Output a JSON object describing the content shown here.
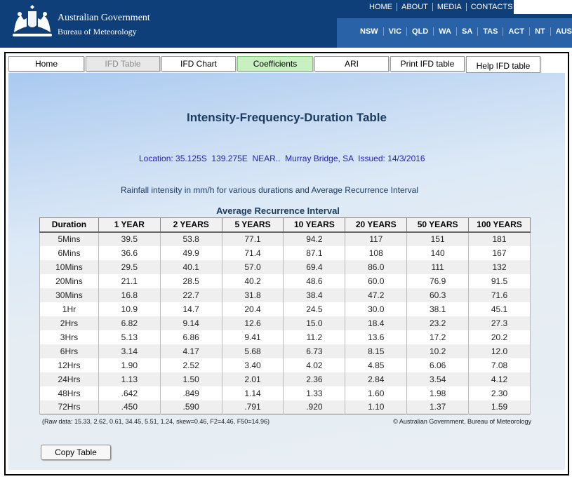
{
  "header": {
    "gov_name": "Australian Government",
    "bom_name": "Bureau of Meteorology",
    "topnav": [
      "HOME",
      "ABOUT",
      "MEDIA",
      "CONTACTS"
    ],
    "statenav": [
      "NSW",
      "VIC",
      "QLD",
      "WA",
      "SA",
      "TAS",
      "ACT",
      "NT",
      "AUSTRALIA"
    ]
  },
  "tabs": [
    {
      "label": "Home",
      "state": "normal"
    },
    {
      "label": "IFD Table",
      "state": "disabled"
    },
    {
      "label": "IFD Chart",
      "state": "normal"
    },
    {
      "label": "Coefficients",
      "state": "active"
    },
    {
      "label": "ARI",
      "state": "normal"
    },
    {
      "label": "Print IFD table",
      "state": "normal"
    },
    {
      "label": "Help IFD table",
      "state": "normal"
    }
  ],
  "main": {
    "title": "Intensity-Frequency-Duration Table",
    "location": "Location: 35.125S  139.275E  NEAR..  Murray Bridge, SA  Issued: 14/3/2016",
    "subtitle": "Rainfall intensity in mm/h for various durations and Average Recurrence Interval",
    "ari_heading": "Average Recurrence Interval",
    "raw_data": "(Raw data: 15.33, 2.62, 0.61, 34.45, 5.51, 1.24, skew=0.46, F2=4.46, F50=14.96)",
    "copyright": "© Australian Government, Bureau of Meteorology",
    "copy_button": "Copy Table"
  },
  "table": {
    "headers": [
      "Duration",
      "1 YEAR",
      "2 YEARS",
      "5 YEARS",
      "10 YEARS",
      "20 YEARS",
      "50 YEARS",
      "100 YEARS"
    ],
    "rows": [
      [
        "5Mins",
        "39.5",
        "53.8",
        "77.1",
        "94.2",
        "117",
        "151",
        "181"
      ],
      [
        "6Mins",
        "36.6",
        "49.9",
        "71.4",
        "87.1",
        "108",
        "140",
        "167"
      ],
      [
        "10Mins",
        "29.5",
        "40.1",
        "57.0",
        "69.4",
        "86.0",
        "111",
        "132"
      ],
      [
        "20Mins",
        "21.1",
        "28.5",
        "40.2",
        "48.6",
        "60.0",
        "76.9",
        "91.5"
      ],
      [
        "30Mins",
        "16.8",
        "22.7",
        "31.8",
        "38.4",
        "47.2",
        "60.3",
        "71.6"
      ],
      [
        "1Hr",
        "10.9",
        "14.7",
        "20.4",
        "24.5",
        "30.0",
        "38.1",
        "45.1"
      ],
      [
        "2Hrs",
        "6.82",
        "9.14",
        "12.6",
        "15.0",
        "18.4",
        "23.2",
        "27.3"
      ],
      [
        "3Hrs",
        "5.13",
        "6.86",
        "9.41",
        "11.2",
        "13.6",
        "17.2",
        "20.2"
      ],
      [
        "6Hrs",
        "3.14",
        "4.17",
        "5.68",
        "6.73",
        "8.15",
        "10.2",
        "12.0"
      ],
      [
        "12Hrs",
        "1.90",
        "2.52",
        "3.40",
        "4.02",
        "4.85",
        "6.06",
        "7.08"
      ],
      [
        "24Hrs",
        "1.13",
        "1.50",
        "2.01",
        "2.36",
        "2.84",
        "3.54",
        "4.12"
      ],
      [
        "48Hrs",
        ".642",
        ".849",
        "1.14",
        "1.33",
        "1.60",
        "1.98",
        "2.30"
      ],
      [
        "72Hrs",
        ".450",
        ".590",
        ".791",
        ".920",
        "1.10",
        "1.37",
        "1.59"
      ]
    ]
  },
  "colors": {
    "header_bg": "#0f3f78",
    "state_bar": "#2a62a8",
    "active_tab": "#c8f0c0",
    "location_text": "#2222b8",
    "title_text": "#1b3a5c"
  }
}
